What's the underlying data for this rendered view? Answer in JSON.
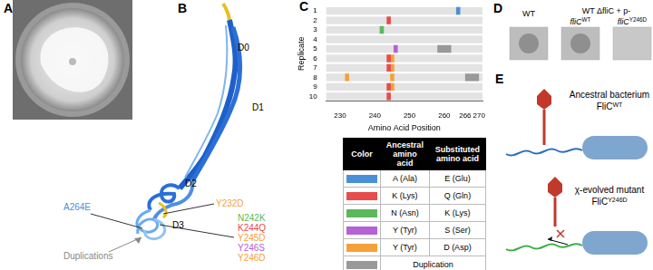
{
  "panel_labels": [
    "A",
    "B",
    "C",
    "D",
    "E"
  ],
  "structure": {
    "domains": [
      "D0",
      "D1",
      "D2",
      "D3"
    ],
    "sites": [
      {
        "label": "A264E",
        "color": "#4a90d9"
      },
      {
        "label": "Y232D",
        "color": "#f5a13a"
      },
      {
        "label": "N242K",
        "color": "#5cb85c"
      },
      {
        "label": "K244Q",
        "color": "#e84b4b"
      },
      {
        "label": "Y245D",
        "color": "#f5a13a"
      },
      {
        "label": "Y246S",
        "color": "#b462d6"
      },
      {
        "label": "Y246D",
        "color": "#f5a13a"
      }
    ],
    "duplications": "Duplications"
  },
  "chart_data": {
    "type": "bar",
    "orientation": "horizontal",
    "x_label": "Amino Acid Position",
    "y_label": "Replicate",
    "categories": [
      1,
      2,
      3,
      4,
      5,
      6,
      7,
      8,
      9,
      10
    ],
    "xlim": [
      226,
      271
    ],
    "xticks": [
      230,
      240,
      250,
      260,
      266,
      270
    ],
    "mutations": [
      {
        "replicate": 1,
        "position": 264,
        "color": "#4a90d9"
      },
      {
        "replicate": 2,
        "position": 244,
        "color": "#e84b4b"
      },
      {
        "replicate": 3,
        "position": 242,
        "color": "#5cb85c"
      },
      {
        "replicate": 5,
        "position": 246,
        "color": "#b462d6"
      },
      {
        "replicate": 6,
        "position": 244,
        "color": "#e84b4b"
      },
      {
        "replicate": 6,
        "position": 245,
        "color": "#f5a13a"
      },
      {
        "replicate": 7,
        "position": 244,
        "color": "#e84b4b"
      },
      {
        "replicate": 7,
        "position": 245,
        "color": "#f5a13a"
      },
      {
        "replicate": 8,
        "position": 232,
        "color": "#f5a13a"
      },
      {
        "replicate": 8,
        "position": 245,
        "color": "#f5a13a"
      },
      {
        "replicate": 9,
        "position": 244,
        "color": "#e84b4b"
      },
      {
        "replicate": 9,
        "position": 245,
        "color": "#f5a13a"
      },
      {
        "replicate": 10,
        "position": 244,
        "color": "#e84b4b"
      }
    ],
    "duplications": [
      {
        "replicate": 5,
        "start": 258,
        "end": 262,
        "color": "#999999"
      },
      {
        "replicate": 8,
        "start": 266,
        "end": 270,
        "color": "#999999"
      }
    ]
  },
  "table": {
    "header": [
      "Color",
      "Ancestral amino acid",
      "Substituted amino acid"
    ],
    "rows": [
      {
        "color": "#4a90d9",
        "cells": [
          "A (Ala)",
          "E (Glu)"
        ]
      },
      {
        "color": "#e84b4b",
        "cells": [
          "K (Lys)",
          "Q (Gln)"
        ]
      },
      {
        "color": "#5cb85c",
        "cells": [
          "N (Asn)",
          "K (Lys)"
        ]
      },
      {
        "color": "#b462d6",
        "cells": [
          "Y (Tyr)",
          "S (Ser)"
        ]
      },
      {
        "color": "#f5a13a",
        "cells": [
          "Y (Tyr)",
          "D (Asp)"
        ]
      },
      {
        "color": "#999999",
        "cells": [
          "Duplication"
        ]
      }
    ]
  },
  "plaque_assay": {
    "group_label": "WT ΔfliC + p-",
    "panels": [
      {
        "label": [
          {
            "text": "WT"
          }
        ],
        "group": false,
        "plaque": true
      },
      {
        "label": [
          {
            "text": "fliC",
            "italic": true
          },
          {
            "text": "WT",
            "sup": true
          }
        ],
        "group": true,
        "plaque": true
      },
      {
        "label": [
          {
            "text": "fliC",
            "italic": true
          },
          {
            "text": "Y246D",
            "sup": true
          }
        ],
        "group": true,
        "plaque": false
      }
    ]
  },
  "model": {
    "items": [
      {
        "title": "Ancestral bacterium",
        "label": [
          {
            "text": "FliC"
          },
          {
            "text": "WT",
            "sup": true
          }
        ],
        "flagellum_color": "#2e6fc0",
        "blocked": false
      },
      {
        "title": "χ-evolved mutant",
        "label": [
          {
            "text": "FliC"
          },
          {
            "text": "Y246D",
            "sup": true
          }
        ],
        "flagellum_color": "#3fae49",
        "blocked": true
      }
    ]
  }
}
